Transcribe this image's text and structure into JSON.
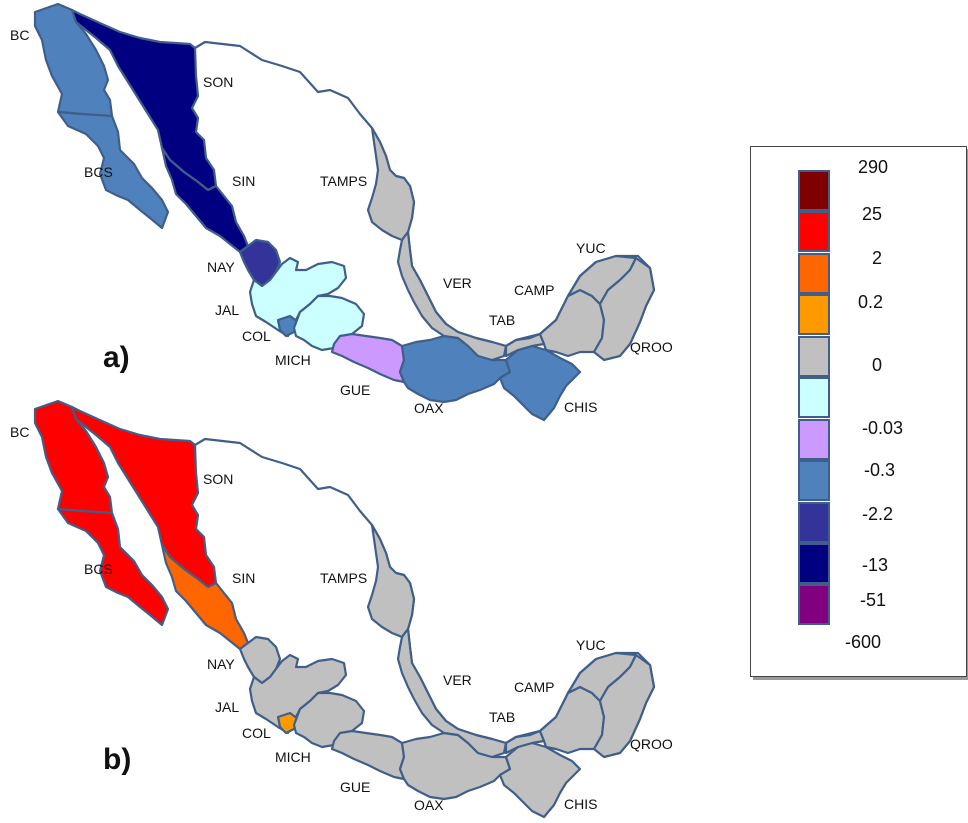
{
  "panels": [
    {
      "label": "a)"
    },
    {
      "label": "b)"
    }
  ],
  "state_labels": [
    "BC",
    "SON",
    "BCS",
    "SIN",
    "TAMPS",
    "NAY",
    "JAL",
    "COL",
    "MICH",
    "GUE",
    "VER",
    "OAX",
    "TAB",
    "CAMP",
    "YUC",
    "QROO",
    "CHIS"
  ],
  "legend": {
    "entries": [
      {
        "value": "290",
        "color": "#7f0000"
      },
      {
        "value": "25",
        "color": "#ff0000"
      },
      {
        "value": "2",
        "color": "#ff6600"
      },
      {
        "value": "0.2",
        "color": "#ff9900"
      },
      {
        "value": "0",
        "color": "#c0c0c0"
      },
      {
        "value": "-0.03",
        "color": "#ccffff"
      },
      {
        "value": "-0.3",
        "color": "#cc99ff"
      },
      {
        "value": "-2.2",
        "color": "#4f81bd"
      },
      {
        "value": "-13",
        "color": "#333399"
      },
      {
        "value": "-51",
        "color": "#000080"
      },
      {
        "value": "-600",
        "color": "#800080"
      }
    ]
  },
  "map_a_colors": {
    "BC": "#4f81bd",
    "BCS": "#4f81bd",
    "SON": "#000080",
    "SIN": "#000080",
    "NAY": "#333399",
    "JAL": "#ccffff",
    "COL": "#4f81bd",
    "MICH": "#ccffff",
    "GUE": "#cc99ff",
    "OAX": "#4f81bd",
    "CHIS": "#4f81bd",
    "TAMPS": "#c0c0c0",
    "VER": "#c0c0c0",
    "TAB": "#c0c0c0",
    "CAMP": "#c0c0c0",
    "YUC": "#c0c0c0",
    "QROO": "#c0c0c0"
  },
  "map_b_colors": {
    "BC": "#ff0000",
    "BCS": "#ff0000",
    "SON": "#ff0000",
    "SIN": "#ff6600",
    "NAY": "#c0c0c0",
    "JAL": "#c0c0c0",
    "COL": "#ff9900",
    "MICH": "#c0c0c0",
    "GUE": "#c0c0c0",
    "OAX": "#c0c0c0",
    "CHIS": "#c0c0c0",
    "TAMPS": "#c0c0c0",
    "VER": "#c0c0c0",
    "TAB": "#c0c0c0",
    "CAMP": "#c0c0c0",
    "YUC": "#c0c0c0",
    "QROO": "#c0c0c0"
  }
}
